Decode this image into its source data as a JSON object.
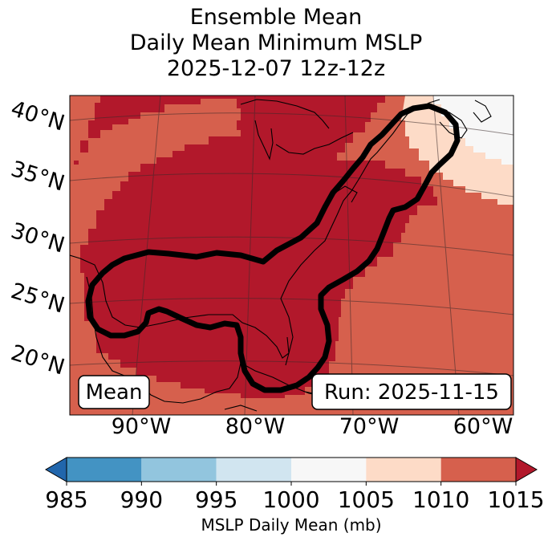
{
  "title": {
    "line1": "Ensemble Mean",
    "line2": "Daily Mean Minimum MSLP",
    "line3": "2025-12-07 12z-12z"
  },
  "map": {
    "lat_labels": [
      "40°N",
      "35°N",
      "30°N",
      "25°N",
      "20°N"
    ],
    "lon_labels": [
      "90°W",
      "80°W",
      "70°W",
      "60°W"
    ],
    "box_left": "Mean",
    "box_right": "Run: 2025-11-15",
    "contour_color": "#000000"
  },
  "colorbar": {
    "label": "MSLP Daily Mean (mb)",
    "ticks": [
      "985",
      "990",
      "995",
      "1000",
      "1005",
      "1010",
      "1015"
    ],
    "colors": [
      "#2166ac",
      "#4393c3",
      "#92c5de",
      "#d1e5f0",
      "#f7f7f7",
      "#fddbc7",
      "#d6604d",
      "#b2182b"
    ],
    "bins": [
      {
        "from": 985,
        "to": 990,
        "color": "#4393c3"
      },
      {
        "from": 990,
        "to": 995,
        "color": "#92c5de"
      },
      {
        "from": 995,
        "to": 1000,
        "color": "#d1e5f0"
      },
      {
        "from": 1000,
        "to": 1005,
        "color": "#f7f7f7"
      },
      {
        "from": 1005,
        "to": 1010,
        "color": "#fddbc7"
      },
      {
        "from": 1010,
        "to": 1015,
        "color": "#d6604d"
      }
    ],
    "under_color": "#2166ac",
    "over_color": "#b2182b"
  }
}
